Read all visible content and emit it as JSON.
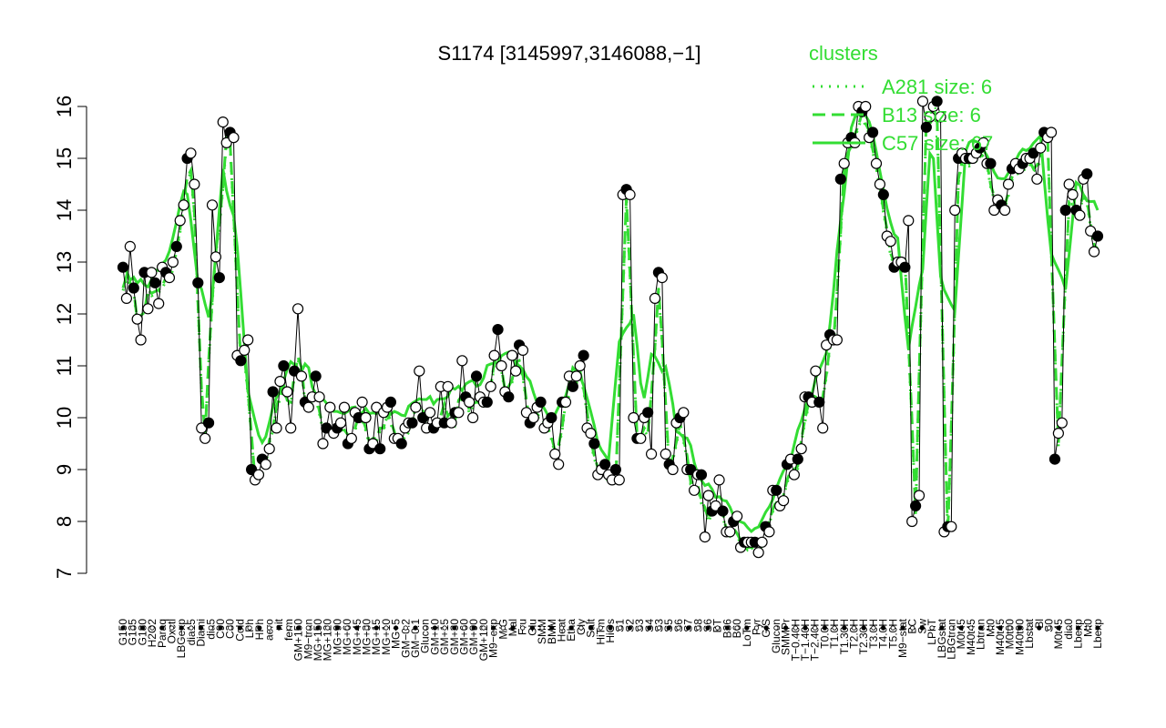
{
  "chart_data": {
    "type": "line",
    "title": "S1174 [3145997,3146088,−1]",
    "xlabel": "",
    "ylabel": "",
    "ylim": [
      7,
      16
    ],
    "yticks": [
      7,
      8,
      9,
      10,
      11,
      12,
      13,
      14,
      15,
      16
    ],
    "x_tick_labels": [
      "G150",
      "G135",
      "G180",
      "H2O2",
      "Paraq",
      "Oxctl",
      "LBGexp",
      "dia15",
      "Diami",
      "dia5",
      "C90",
      "C30",
      "Cold",
      "LPh",
      "HPh",
      "aero",
      "nit",
      "ferm",
      "GM+150",
      "M9−tran",
      "MG+150",
      "MG+120",
      "MG+90",
      "MG+60",
      "MG+45",
      "MG+30",
      "MG+15",
      "MG+10",
      "MG+5",
      "GM−0.2",
      "GM−0.1",
      "Glucon",
      "GM+10",
      "GM+15",
      "GM+30",
      "GM+60",
      "GM+90",
      "GM+120",
      "M9−exp",
      "M/G",
      "Mal",
      "Fru",
      "Glu",
      "SMM",
      "BMM",
      "Heat",
      "Etha",
      "Gly",
      "Salt",
      "HiTm",
      "HiOs",
      "S1",
      "S2",
      "S3",
      "S4",
      "S3",
      "S5",
      "S6",
      "S7",
      "S8",
      "S6",
      "BT",
      "B36",
      "B60",
      "LoTm",
      "Pyr",
      "G/S",
      "Glucon",
      "SMMPr",
      "T−0.40H",
      "T−1.40H",
      "T−2.40H",
      "T0.0H",
      "T1.0H",
      "T1.30H",
      "T2.0H",
      "T2.30H",
      "T3.0H",
      "T4.0H",
      "T5.0H",
      "M9−stat",
      "BC",
      "Sw",
      "LPhT",
      "LBGstat",
      "LBGtran",
      "M0t45",
      "M40t45",
      "Lbtran",
      "Mt0",
      "M40t45",
      "M0t90",
      "M40t90",
      "Lbstat",
      "Bl",
      "S0",
      "M0t45",
      "dia0",
      "Lbexp",
      "Mt0",
      "Lbexp"
    ],
    "legend": {
      "title": "clusters",
      "placement": "top-right",
      "entries": [
        {
          "label": "A281  size: 6",
          "style": "dotted"
        },
        {
          "label": "B13  size: 6",
          "style": "dashed"
        },
        {
          "label": "C57  size: 67",
          "style": "solid"
        }
      ]
    },
    "colors": {
      "cluster": "#33dd33",
      "points_line": "#000000",
      "axis": "#000000"
    },
    "series": [
      {
        "role": "points",
        "values": [
          12.9,
          12.3,
          13.3,
          12.5,
          11.9,
          11.5,
          12.8,
          12.1,
          12.8,
          12.6,
          12.2,
          12.9,
          12.8,
          12.7,
          13.0,
          13.3,
          13.8,
          14.1,
          15.0,
          15.1,
          14.5,
          12.6,
          9.8,
          9.6,
          9.9,
          14.1,
          13.1,
          12.7,
          15.7,
          15.3,
          15.5,
          15.4,
          11.2,
          11.1,
          11.3,
          11.5,
          9.0,
          8.8,
          8.9,
          9.2,
          9.1,
          9.4,
          10.5,
          9.8,
          10.7,
          11.0,
          10.5,
          9.8,
          10.9,
          12.1,
          10.8,
          10.3,
          10.2,
          10.4,
          10.8,
          10.4,
          9.5,
          9.8,
          10.2,
          9.7,
          9.8,
          9.9,
          10.2,
          9.5,
          9.6,
          10.1,
          10.0,
          10.3,
          10.0,
          9.4,
          9.5,
          10.2,
          9.4,
          10.1,
          10.2,
          10.3,
          9.6,
          9.6,
          9.5,
          9.8,
          9.9,
          9.9,
          10.2,
          10.9,
          10.0,
          9.8,
          10.1,
          9.8,
          9.9,
          10.6,
          9.9,
          10.6,
          9.9,
          10.1,
          10.1,
          11.1,
          10.4,
          10.3,
          10.0,
          10.8,
          10.4,
          10.3,
          10.3,
          10.6,
          11.2,
          11.7,
          11.0,
          10.5,
          10.4,
          11.2,
          10.9,
          11.4,
          11.3,
          10.1,
          9.9,
          10.0,
          10.2,
          10.3,
          9.8,
          9.9,
          10.0,
          9.3,
          9.1,
          10.3,
          10.3,
          10.8,
          10.6,
          10.8,
          11.0,
          11.2,
          9.8,
          9.7,
          9.5,
          8.9,
          9.0,
          9.1,
          8.9,
          8.8,
          9.0,
          8.8,
          14.3,
          14.4,
          14.3,
          10.0,
          9.6,
          9.6,
          10.0,
          10.1,
          9.3,
          12.3,
          12.8,
          12.7,
          9.3,
          9.1,
          9.0,
          9.9,
          10.0,
          10.1,
          9.0,
          9.0,
          8.6,
          8.9,
          8.9,
          7.7,
          8.5,
          8.2,
          8.3,
          8.8,
          8.2,
          7.8,
          7.8,
          8.0,
          8.1,
          7.5,
          7.6,
          7.6,
          7.6,
          7.6,
          7.4,
          7.6,
          7.9,
          7.8,
          8.6,
          8.6,
          8.3,
          8.4,
          9.1,
          9.2,
          8.9,
          9.2,
          9.4,
          10.4,
          10.4,
          10.3,
          10.9,
          10.3,
          9.8,
          11.4,
          11.6,
          11.5,
          11.5,
          14.6,
          14.9,
          15.3,
          15.4,
          15.3,
          16.0,
          15.9,
          16.0,
          15.4,
          15.5,
          14.9,
          14.5,
          14.3,
          13.5,
          13.4,
          12.9,
          13.0,
          13.0,
          12.9,
          13.8,
          8.0,
          8.3,
          8.5,
          16.1,
          15.6,
          15.8,
          16.0,
          16.1,
          15.8,
          7.8,
          7.9,
          7.9,
          14.0,
          15.0,
          15.1,
          15.0,
          15.0,
          15.0,
          15.1,
          15.2,
          15.3,
          14.9,
          14.9,
          14.0,
          14.2,
          14.1,
          14.0,
          14.5,
          14.8,
          14.9,
          14.8,
          14.9,
          15.0,
          15.0,
          15.1,
          14.6,
          15.2,
          15.5,
          15.4,
          15.5,
          9.2,
          9.7,
          9.9,
          14.0,
          14.5,
          14.3,
          14.0,
          13.9,
          14.6,
          14.7,
          13.6,
          13.2,
          13.5
        ]
      }
    ]
  }
}
